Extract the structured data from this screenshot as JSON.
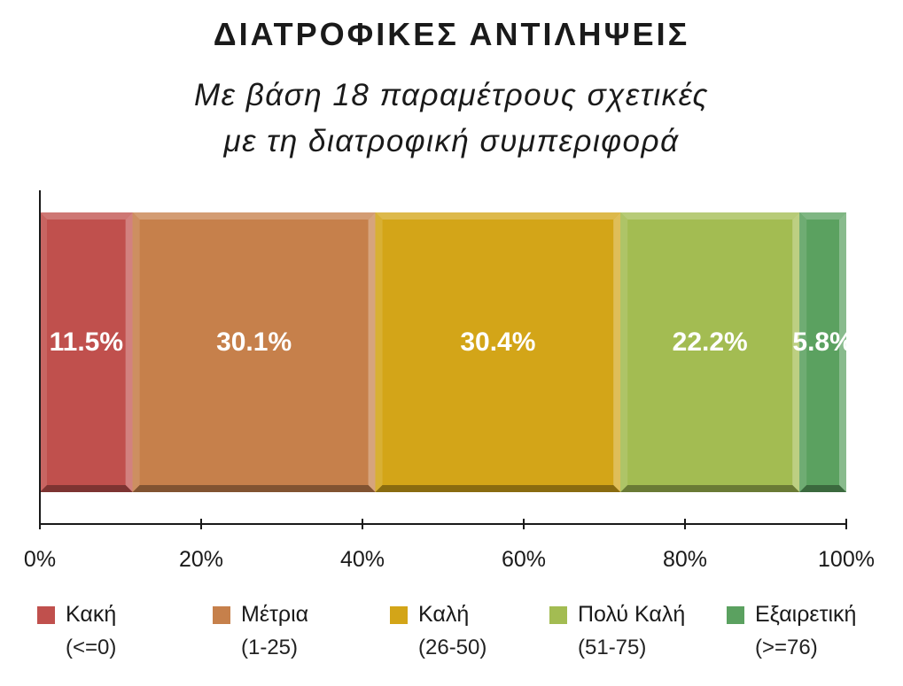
{
  "title": "ΔΙΑΤΡΟΦΙΚΕΣ ΑΝΤΙΛΗΨΕΙΣ",
  "subtitle_line1": "Με βάση 18 παραμέτρους σχετικές",
  "subtitle_line2": "με τη διατροφική συμπεριφορά",
  "chart_data": {
    "type": "bar",
    "orientation": "horizontal-stacked-100",
    "categories": [
      ""
    ],
    "series": [
      {
        "name": "Κακή",
        "range": "(<=0)",
        "values": [
          11.5
        ],
        "label": "11.5%",
        "color": "#c0504d"
      },
      {
        "name": "Μέτρια",
        "range": "(1-25)",
        "values": [
          30.1
        ],
        "label": "30.1%",
        "color": "#c6804b"
      },
      {
        "name": "Καλή",
        "range": "(26-50)",
        "values": [
          30.4
        ],
        "label": "30.4%",
        "color": "#d3a518"
      },
      {
        "name": "Πολύ Καλή",
        "range": "(51-75)",
        "values": [
          22.2
        ],
        "label": "22.2%",
        "color": "#a3bc52"
      },
      {
        "name": "Εξαιρετική",
        "range": "(>=76)",
        "values": [
          5.8
        ],
        "label": "5.8%",
        "color": "#5ba160"
      }
    ],
    "xlim": [
      0,
      100
    ],
    "xticks": [
      "0%",
      "20%",
      "40%",
      "60%",
      "80%",
      "100%"
    ],
    "xlabel": "",
    "ylabel": "",
    "legend_position": "bottom"
  }
}
